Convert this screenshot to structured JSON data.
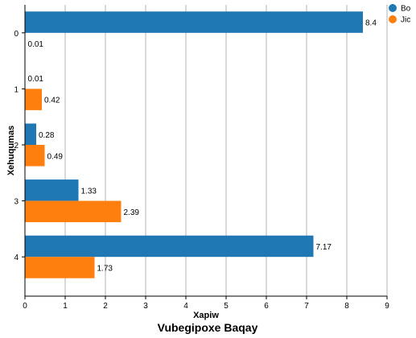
{
  "chart_data": {
    "type": "bar",
    "orientation": "horizontal",
    "title": "Vubegipoxe Baqay",
    "xlabel": "Xapiw",
    "ylabel": "Xehuqumas",
    "categories": [
      "0",
      "1",
      "2",
      "3",
      "4"
    ],
    "xlim": [
      0,
      9
    ],
    "xticks": [
      0,
      1,
      2,
      3,
      4,
      5,
      6,
      7,
      8,
      9
    ],
    "grid": "vertical",
    "legend_position": "top-right",
    "series": [
      {
        "name": "Bo",
        "color": "#1f77b4",
        "values": [
          8.4,
          0.01,
          0.28,
          1.33,
          7.17
        ],
        "labels": [
          "8.4",
          "0.01",
          "0.28",
          "1.33",
          "7.17"
        ]
      },
      {
        "name": "Jic",
        "color": "#ff7f0e",
        "values": [
          0.01,
          0.42,
          0.49,
          2.39,
          1.73
        ],
        "labels": [
          "0.01",
          "0.42",
          "0.49",
          "2.39",
          "1.73"
        ]
      }
    ]
  }
}
